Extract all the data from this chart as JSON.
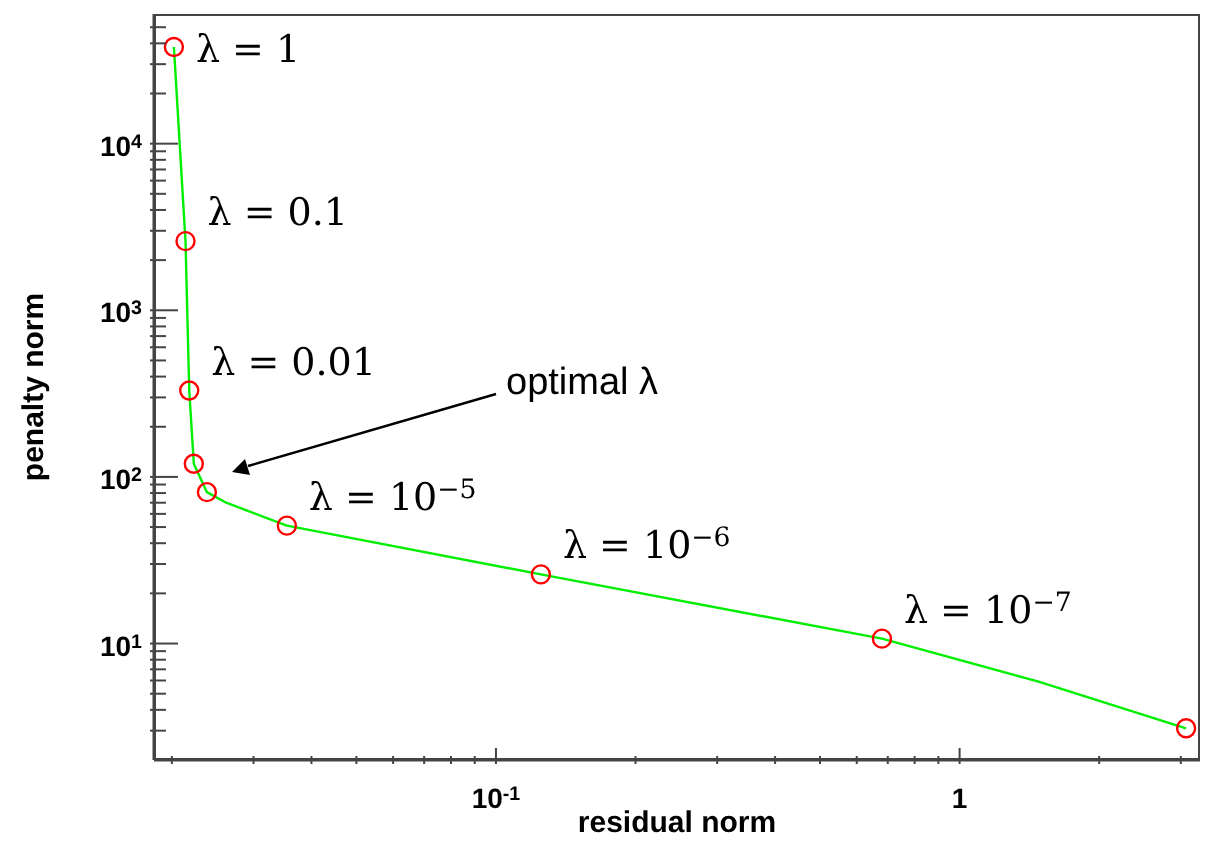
{
  "chart_data": {
    "type": "line",
    "xlabel": "residual norm",
    "ylabel": "penalty norm",
    "log": "xy",
    "grid": false,
    "legend": false,
    "xlim": [
      0.0183,
      3.3
    ],
    "ylim": [
      2,
      60000
    ],
    "xticks": [
      {
        "value": 0.02,
        "label": null
      },
      {
        "value": 0.03,
        "label": null
      },
      {
        "value": 0.04,
        "label": null
      },
      {
        "value": 0.05,
        "label": null
      },
      {
        "value": 0.06,
        "label": null
      },
      {
        "value": 0.07,
        "label": null
      },
      {
        "value": 0.08,
        "label": null
      },
      {
        "value": 0.09,
        "label": null
      },
      {
        "value": 0.1,
        "label": "10$^{-1}$"
      },
      {
        "value": 0.2,
        "label": null
      },
      {
        "value": 0.3,
        "label": null
      },
      {
        "value": 0.4,
        "label": null
      },
      {
        "value": 0.5,
        "label": null
      },
      {
        "value": 0.6,
        "label": null
      },
      {
        "value": 0.7,
        "label": null
      },
      {
        "value": 0.8,
        "label": null
      },
      {
        "value": 0.9,
        "label": null
      },
      {
        "value": 1,
        "label": "1"
      },
      {
        "value": 2,
        "label": null
      },
      {
        "value": 3,
        "label": null
      }
    ],
    "yticks": [
      {
        "value": 3,
        "label": null
      },
      {
        "value": 4,
        "label": null
      },
      {
        "value": 5,
        "label": null
      },
      {
        "value": 6,
        "label": null
      },
      {
        "value": 7,
        "label": null
      },
      {
        "value": 8,
        "label": null
      },
      {
        "value": 9,
        "label": null
      },
      {
        "value": 10,
        "label": "10$^{1}$"
      },
      {
        "value": 20,
        "label": null
      },
      {
        "value": 30,
        "label": null
      },
      {
        "value": 40,
        "label": null
      },
      {
        "value": 50,
        "label": null
      },
      {
        "value": 60,
        "label": null
      },
      {
        "value": 70,
        "label": null
      },
      {
        "value": 80,
        "label": null
      },
      {
        "value": 90,
        "label": null
      },
      {
        "value": 100,
        "label": "10$^{2}$"
      },
      {
        "value": 200,
        "label": null
      },
      {
        "value": 300,
        "label": null
      },
      {
        "value": 400,
        "label": null
      },
      {
        "value": 500,
        "label": null
      },
      {
        "value": 600,
        "label": null
      },
      {
        "value": 700,
        "label": null
      },
      {
        "value": 800,
        "label": null
      },
      {
        "value": 900,
        "label": null
      },
      {
        "value": 1000,
        "label": "10$^{3}$"
      },
      {
        "value": 2000,
        "label": null
      },
      {
        "value": 3000,
        "label": null
      },
      {
        "value": 4000,
        "label": null
      },
      {
        "value": 5000,
        "label": null
      },
      {
        "value": 6000,
        "label": null
      },
      {
        "value": 7000,
        "label": null
      },
      {
        "value": 8000,
        "label": null
      },
      {
        "value": 9000,
        "label": null
      },
      {
        "value": 10000,
        "label": "10$^{4}$"
      },
      {
        "value": 20000,
        "label": null
      },
      {
        "value": 30000,
        "label": null
      },
      {
        "value": 40000,
        "label": null
      },
      {
        "value": 50000,
        "label": null
      }
    ],
    "series": [
      {
        "color": "#00ee00",
        "marker": "none",
        "line_style": "solid",
        "x": [
          0.0202,
          0.0214,
          0.0218,
          0.0223,
          0.0238,
          0.0262,
          0.0354,
          0.125,
          0.68,
          1.48,
          3.08
        ],
        "values": [
          38000,
          2600,
          330,
          120,
          81,
          70,
          51,
          26,
          10.7,
          5.9,
          3.1
        ]
      },
      {
        "type": "scatter",
        "color": "#ff0000",
        "marker": "circle",
        "x": [
          0.0202,
          0.0214,
          0.0218,
          0.0223,
          0.0238,
          0.0354,
          0.125,
          0.68,
          3.08
        ],
        "values": [
          38000,
          2600,
          330,
          120,
          81,
          51,
          26,
          10.7,
          3.1
        ]
      }
    ],
    "annotations": [
      {
        "text": "λ = 1",
        "x": 0.0202,
        "y": 38000
      },
      {
        "text": "λ = 0.1",
        "x": 0.0214,
        "y": 2600
      },
      {
        "text": "λ = 0.01",
        "x": 0.0218,
        "y": 330
      },
      {
        "text": "λ = 10$^{−5}$",
        "x": 0.0354,
        "y": 51
      },
      {
        "text": "λ = 10$^{−6}$",
        "x": 0.125,
        "y": 26
      },
      {
        "text": "λ = 10$^{−7}$",
        "x": 0.68,
        "y": 10.7
      },
      "optimal λ"
    ]
  }
}
